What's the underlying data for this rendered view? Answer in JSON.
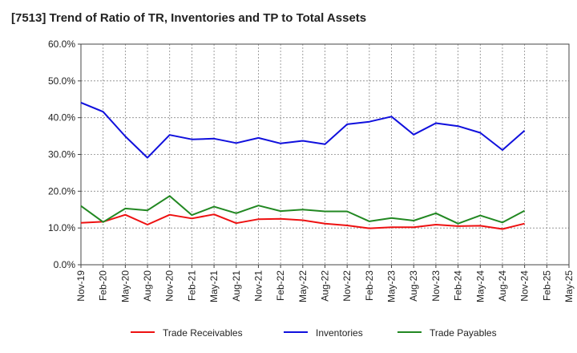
{
  "chart_data": {
    "type": "line",
    "title": "[7513]  Trend of Ratio of TR, Inventories and TP to Total Assets",
    "categories": [
      "Nov-19",
      "Feb-20",
      "May-20",
      "Aug-20",
      "Nov-20",
      "Feb-21",
      "May-21",
      "Aug-21",
      "Nov-21",
      "Feb-22",
      "May-22",
      "Aug-22",
      "Nov-22",
      "Feb-23",
      "May-23",
      "Aug-23",
      "Nov-23",
      "Feb-24",
      "May-24",
      "Aug-24",
      "Nov-24",
      "Feb-25",
      "May-25"
    ],
    "ylim": [
      0,
      60
    ],
    "yticks": [
      0,
      10,
      20,
      30,
      40,
      50,
      60
    ],
    "ytick_labels": [
      "0.0%",
      "10.0%",
      "20.0%",
      "30.0%",
      "40.0%",
      "50.0%",
      "60.0%"
    ],
    "grid": true,
    "legend_position": "bottom",
    "series": [
      {
        "name": "Trade Receivables",
        "color": "#ee1111",
        "values": [
          11.4,
          11.7,
          13.6,
          10.9,
          13.6,
          12.6,
          13.7,
          11.3,
          12.4,
          12.5,
          12.1,
          11.2,
          10.7,
          9.9,
          10.2,
          10.2,
          10.9,
          10.5,
          10.6,
          9.7,
          11.2,
          null,
          null
        ]
      },
      {
        "name": "Inventories",
        "color": "#1010dd",
        "values": [
          44.1,
          41.6,
          34.9,
          29.1,
          35.3,
          34.1,
          34.3,
          33.1,
          34.5,
          33.0,
          33.7,
          32.8,
          38.2,
          38.9,
          40.3,
          35.4,
          38.5,
          37.7,
          35.9,
          31.2,
          36.5,
          null,
          null
        ]
      },
      {
        "name": "Trade Payables",
        "color": "#228822",
        "values": [
          16.0,
          11.6,
          15.3,
          14.8,
          18.7,
          13.5,
          15.8,
          14.0,
          16.1,
          14.6,
          15.0,
          14.5,
          14.5,
          11.8,
          12.7,
          12.0,
          14.0,
          11.2,
          13.4,
          11.5,
          14.7,
          null,
          null
        ]
      }
    ]
  }
}
